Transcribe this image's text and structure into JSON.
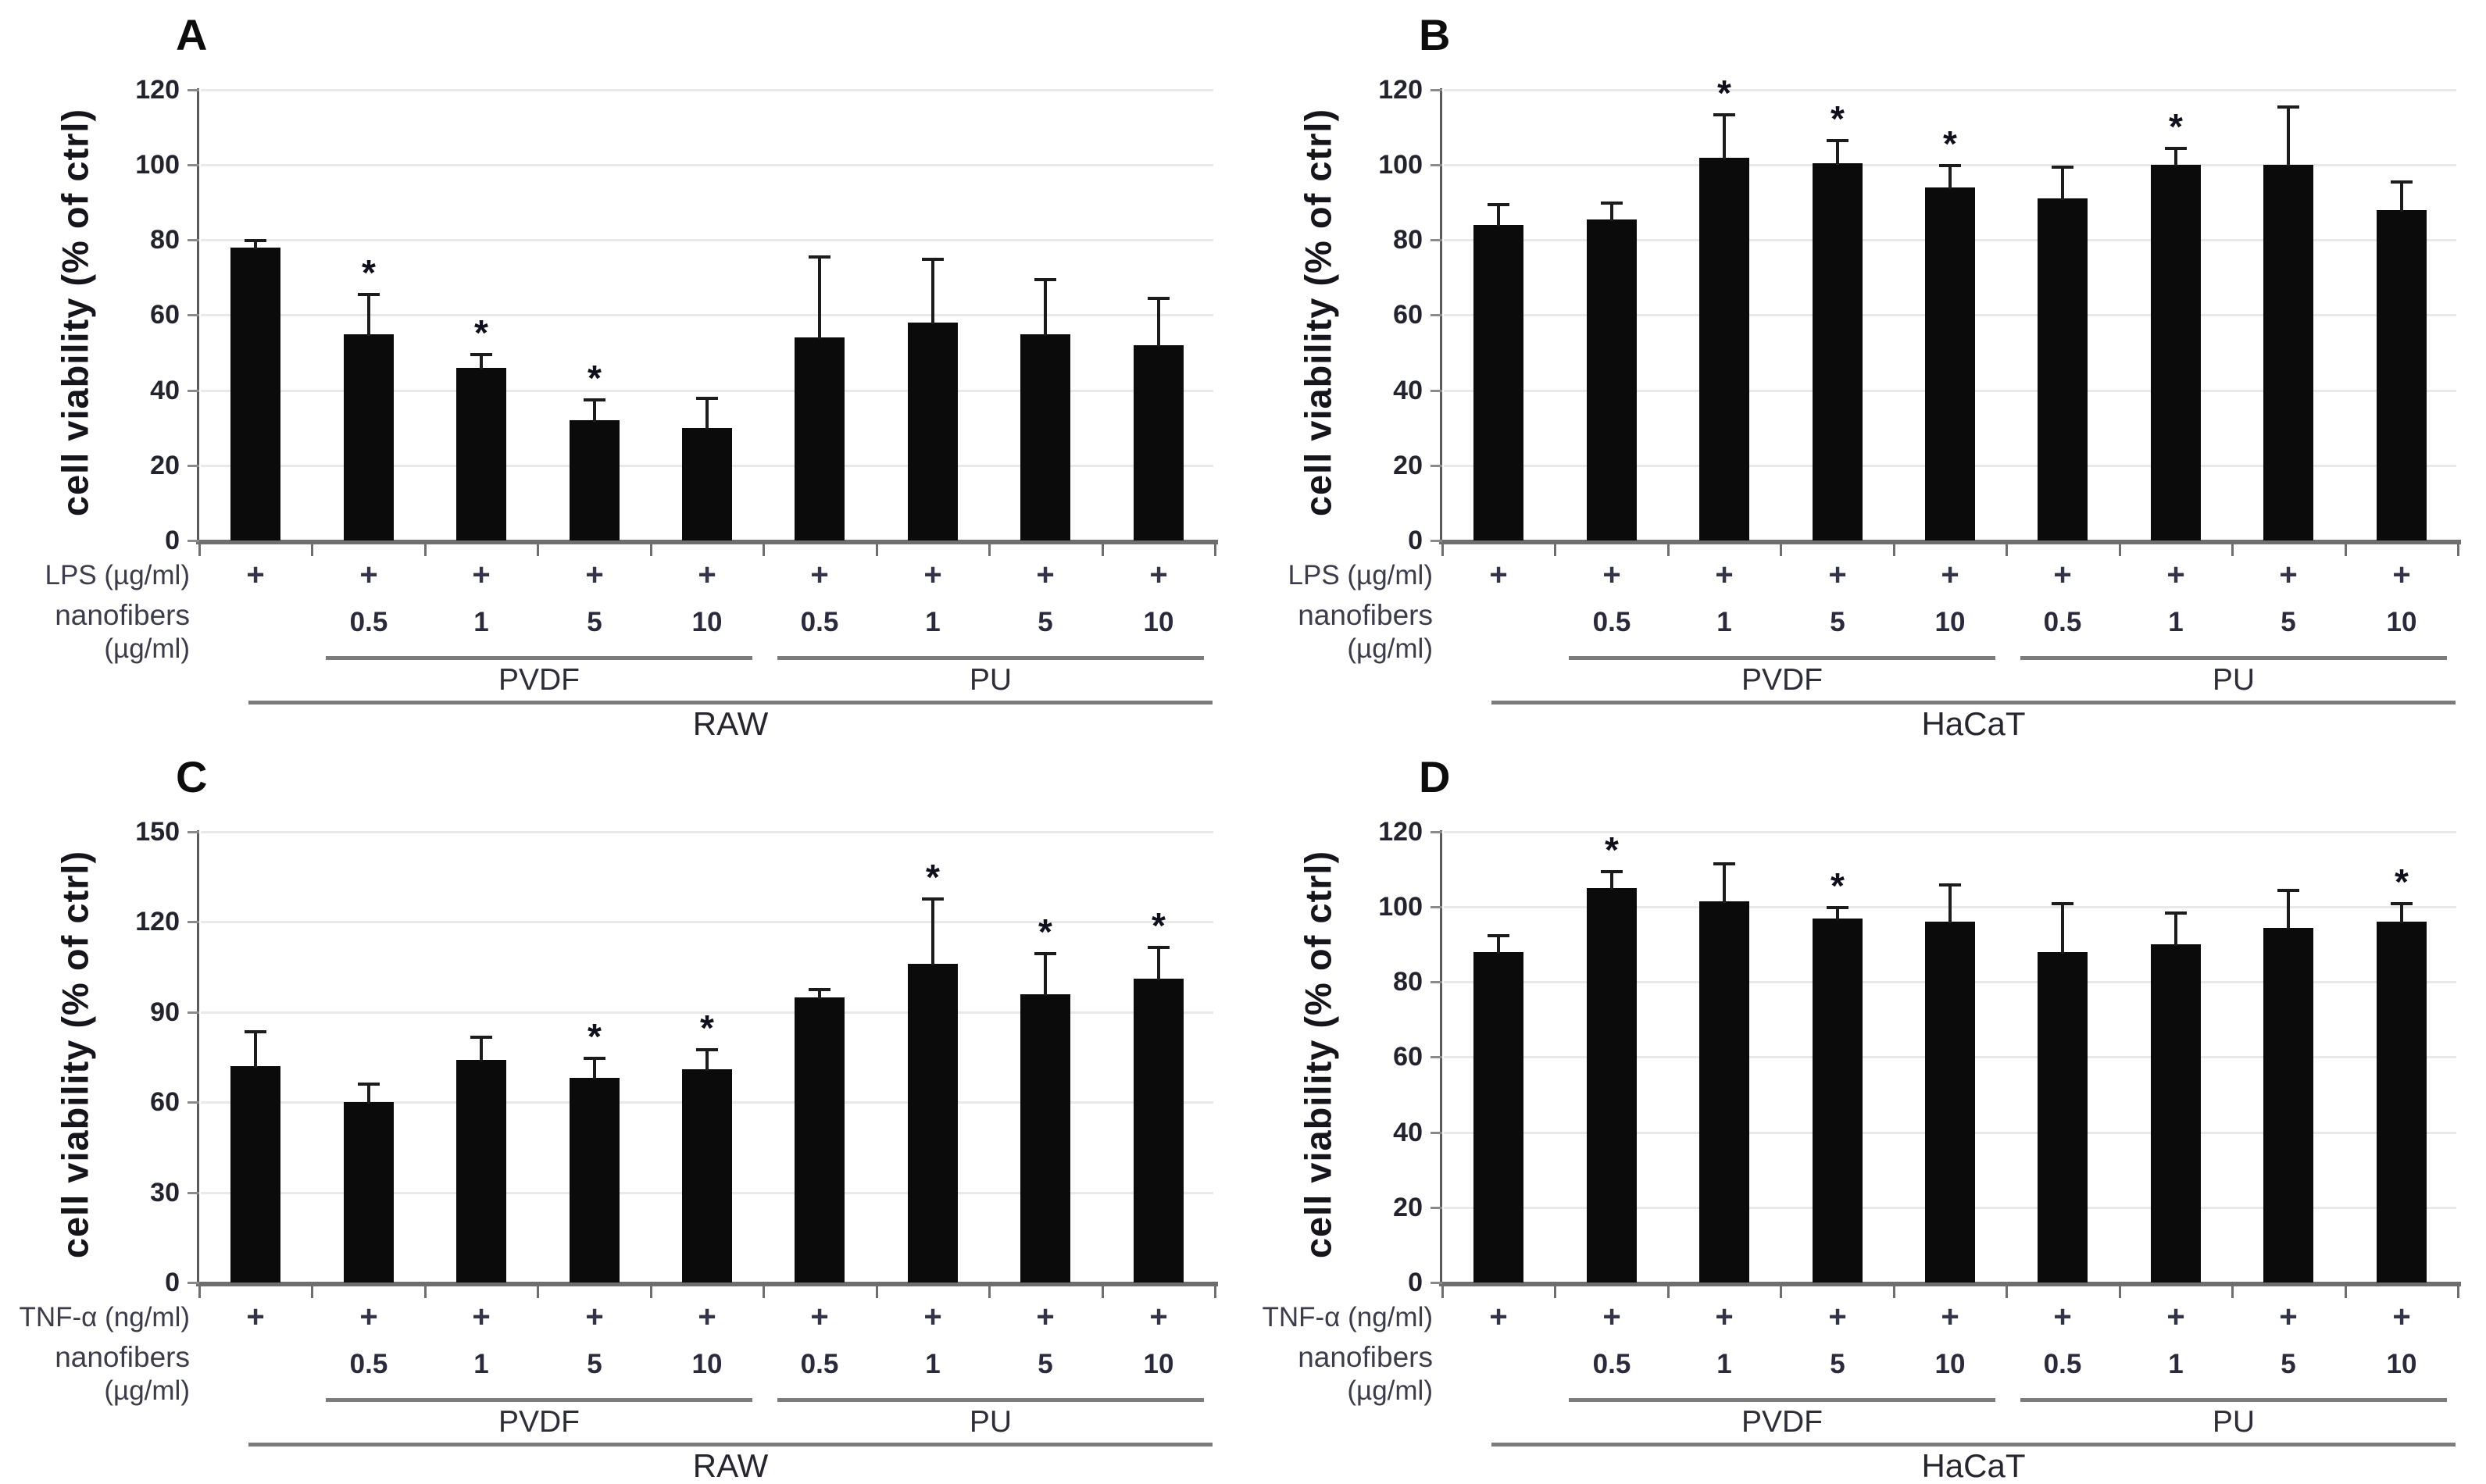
{
  "figure": {
    "background": "#ffffff",
    "bar_color": "#0b0b0b",
    "axis_color": "#5a5a5a",
    "baseline_color": "#6e6e6e",
    "grid_color": "#e9e9e9",
    "group_line_color": "#7c7c7c",
    "text_color": "#23232e",
    "significance_marker": "*"
  },
  "chart_data": [
    {
      "type": "bar",
      "panel": "A",
      "ylabel": "cell viability (% of ctrl)",
      "ylim": [
        0,
        120
      ],
      "yticks": [
        0,
        20,
        40,
        60,
        80,
        100,
        120
      ],
      "grid": true,
      "legend": "none",
      "stim_label": "LPS (µg/ml)",
      "nanofiber_label_line1": "nanofibers",
      "nanofiber_label_line2": "(µg/ml)",
      "cell_line": "RAW",
      "material_groups": [
        {
          "name": "PVDF",
          "first_bar": 1,
          "last_bar": 4
        },
        {
          "name": "PU",
          "first_bar": 5,
          "last_bar": 8
        }
      ],
      "bars": [
        {
          "stim": "+",
          "dose": "",
          "value": 78,
          "err": 1.5,
          "sig": false
        },
        {
          "stim": "+",
          "dose": "0.5",
          "value": 55,
          "err": 10,
          "sig": true
        },
        {
          "stim": "+",
          "dose": "1",
          "value": 46,
          "err": 3,
          "sig": true
        },
        {
          "stim": "+",
          "dose": "5",
          "value": 32,
          "err": 5,
          "sig": true
        },
        {
          "stim": "+",
          "dose": "10",
          "value": 30,
          "err": 7.5,
          "sig": false
        },
        {
          "stim": "+",
          "dose": "0.5",
          "value": 54,
          "err": 21,
          "sig": false
        },
        {
          "stim": "+",
          "dose": "1",
          "value": 58,
          "err": 16.5,
          "sig": false
        },
        {
          "stim": "+",
          "dose": "5",
          "value": 55,
          "err": 14,
          "sig": false
        },
        {
          "stim": "+",
          "dose": "10",
          "value": 52,
          "err": 12,
          "sig": false
        }
      ]
    },
    {
      "type": "bar",
      "panel": "B",
      "ylabel": "cell viability (% of ctrl)",
      "ylim": [
        0,
        120
      ],
      "yticks": [
        0,
        20,
        40,
        60,
        80,
        100,
        120
      ],
      "grid": true,
      "legend": "none",
      "stim_label": "LPS (µg/ml)",
      "nanofiber_label_line1": "nanofibers",
      "nanofiber_label_line2": "(µg/ml)",
      "cell_line": "HaCaT",
      "material_groups": [
        {
          "name": "PVDF",
          "first_bar": 1,
          "last_bar": 4
        },
        {
          "name": "PU",
          "first_bar": 5,
          "last_bar": 8
        }
      ],
      "bars": [
        {
          "stim": "+",
          "dose": "",
          "value": 84,
          "err": 5,
          "sig": false
        },
        {
          "stim": "+",
          "dose": "0.5",
          "value": 85.5,
          "err": 4,
          "sig": false
        },
        {
          "stim": "+",
          "dose": "1",
          "value": 102,
          "err": 11,
          "sig": true
        },
        {
          "stim": "+",
          "dose": "5",
          "value": 100.5,
          "err": 5.5,
          "sig": true
        },
        {
          "stim": "+",
          "dose": "10",
          "value": 94,
          "err": 5.5,
          "sig": true
        },
        {
          "stim": "+",
          "dose": "0.5",
          "value": 91,
          "err": 8,
          "sig": false
        },
        {
          "stim": "+",
          "dose": "1",
          "value": 100,
          "err": 4,
          "sig": true
        },
        {
          "stim": "+",
          "dose": "5",
          "value": 100,
          "err": 15,
          "sig": false
        },
        {
          "stim": "+",
          "dose": "10",
          "value": 88,
          "err": 7,
          "sig": false
        }
      ]
    },
    {
      "type": "bar",
      "panel": "C",
      "ylabel": "cell viability (% of ctrl)",
      "ylim": [
        0,
        150
      ],
      "yticks": [
        0,
        30,
        60,
        90,
        120,
        150
      ],
      "grid": true,
      "legend": "none",
      "stim_label": "TNF-α (ng/ml)",
      "nanofiber_label_line1": "nanofibers",
      "nanofiber_label_line2": "(µg/ml)",
      "cell_line": "RAW",
      "material_groups": [
        {
          "name": "PVDF",
          "first_bar": 1,
          "last_bar": 4
        },
        {
          "name": "PU",
          "first_bar": 5,
          "last_bar": 8
        }
      ],
      "bars": [
        {
          "stim": "+",
          "dose": "",
          "value": 72,
          "err": 11,
          "sig": false
        },
        {
          "stim": "+",
          "dose": "0.5",
          "value": 60,
          "err": 5.5,
          "sig": false
        },
        {
          "stim": "+",
          "dose": "1",
          "value": 74,
          "err": 7,
          "sig": false
        },
        {
          "stim": "+",
          "dose": "5",
          "value": 68,
          "err": 6,
          "sig": true
        },
        {
          "stim": "+",
          "dose": "10",
          "value": 71,
          "err": 6,
          "sig": true
        },
        {
          "stim": "+",
          "dose": "0.5",
          "value": 95,
          "err": 2,
          "sig": false
        },
        {
          "stim": "+",
          "dose": "1",
          "value": 106,
          "err": 21,
          "sig": true
        },
        {
          "stim": "+",
          "dose": "5",
          "value": 96,
          "err": 13,
          "sig": true
        },
        {
          "stim": "+",
          "dose": "10",
          "value": 101,
          "err": 10,
          "sig": true
        }
      ]
    },
    {
      "type": "bar",
      "panel": "D",
      "ylabel": "cell viability (% of ctrl)",
      "ylim": [
        0,
        120
      ],
      "yticks": [
        0,
        20,
        40,
        60,
        80,
        100,
        120
      ],
      "grid": true,
      "legend": "none",
      "stim_label": "TNF-α (ng/ml)",
      "nanofiber_label_line1": "nanofibers",
      "nanofiber_label_line2": "(µg/ml)",
      "cell_line": "HaCaT",
      "material_groups": [
        {
          "name": "PVDF",
          "first_bar": 1,
          "last_bar": 4
        },
        {
          "name": "PU",
          "first_bar": 5,
          "last_bar": 8
        }
      ],
      "bars": [
        {
          "stim": "+",
          "dose": "",
          "value": 88,
          "err": 4,
          "sig": false
        },
        {
          "stim": "+",
          "dose": "0.5",
          "value": 105,
          "err": 4,
          "sig": true
        },
        {
          "stim": "+",
          "dose": "1",
          "value": 101.5,
          "err": 9.5,
          "sig": false
        },
        {
          "stim": "+",
          "dose": "5",
          "value": 97,
          "err": 2.5,
          "sig": true
        },
        {
          "stim": "+",
          "dose": "10",
          "value": 96,
          "err": 9.5,
          "sig": false
        },
        {
          "stim": "+",
          "dose": "0.5",
          "value": 88,
          "err": 12.5,
          "sig": false
        },
        {
          "stim": "+",
          "dose": "1",
          "value": 90,
          "err": 8,
          "sig": false
        },
        {
          "stim": "+",
          "dose": "5",
          "value": 94.5,
          "err": 9.5,
          "sig": false
        },
        {
          "stim": "+",
          "dose": "10",
          "value": 96,
          "err": 4.5,
          "sig": true
        }
      ]
    }
  ]
}
